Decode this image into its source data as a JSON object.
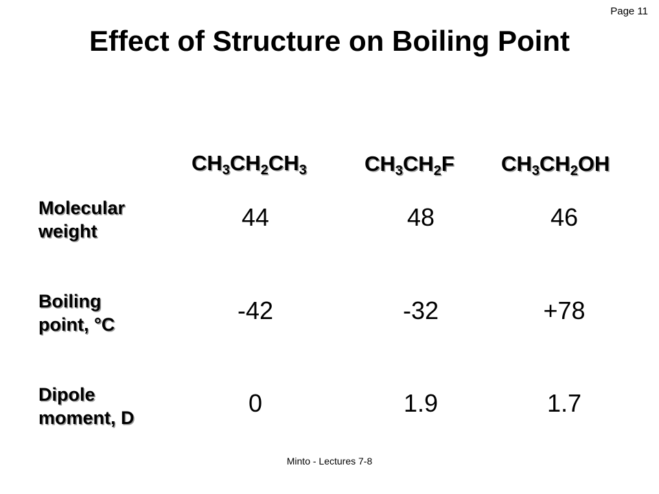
{
  "page_number": "Page 11",
  "title": "Effect of Structure on Boiling Point",
  "compounds": [
    {
      "parts": [
        "CH",
        "3",
        "CH",
        "2",
        "CH",
        "3"
      ]
    },
    {
      "parts": [
        "CH",
        "3",
        "CH",
        "2",
        "F"
      ]
    },
    {
      "parts": [
        "CH",
        "3",
        "CH",
        "2",
        "OH"
      ]
    }
  ],
  "rows": [
    {
      "label_line1": "Molecular",
      "label_line2": "weight",
      "values": [
        "44",
        "48",
        "46"
      ]
    },
    {
      "label_line1": "Boiling",
      "label_line2": "point, °C",
      "values": [
        "-42",
        "-32",
        "+78"
      ]
    },
    {
      "label_line1": "Dipole",
      "label_line2": "moment, D",
      "values": [
        "0",
        "1.9",
        "1.7"
      ]
    }
  ],
  "footer": "Minto - Lectures 7-8"
}
